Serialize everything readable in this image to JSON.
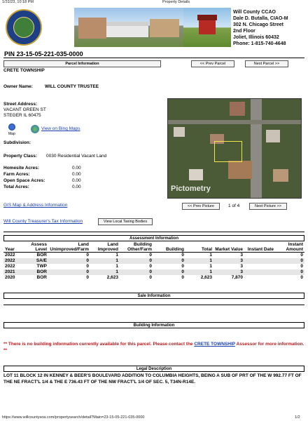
{
  "browser": {
    "print_date": "1/31/23, 10:18 PM",
    "print_title": "Property Details",
    "footer_url": "https://www.willcountysoa.com/propertysearch/detail?Main=23-15-05-221-035-0000",
    "footer_page": "1/2"
  },
  "office": {
    "name": "Will County CCAO",
    "officer": "Dale D. Butalla, CIAO-M",
    "street": "302 N. Chicago Street",
    "floor": "2nd Floor",
    "city": "Joliet, Illinois 60432",
    "phone": "Phone:   1-815-740-4648"
  },
  "pin": "PIN  23-15-05-221-035-0000",
  "parcel": {
    "header": "Parcel Information",
    "prev_label": "<<   Prev Parcel",
    "next_label": "Next Parcel   >>",
    "township": "CRETE TOWNSHIP",
    "owner_label": "Owner Name:",
    "owner_value": "WILL COUNTY TRUSTEE",
    "street_label": "Street Address:",
    "street_line1": "VACANT GREEN ST",
    "street_line2": "STEGER IL 60475",
    "map_label": "Map",
    "bing_link": "View on Bing Maps",
    "subdivision_label": "Subdivision:",
    "class_label": "Property Class:",
    "class_value": "0030 Residential Vacant Land",
    "homesite_label": "Homesite Acres:",
    "homesite_value": "0.00",
    "farm_label": "Farm Acres:",
    "farm_value": "0.00",
    "openspace_label": "Open Space Acres:",
    "openspace_value": "0.00",
    "total_label": "Total Acres:",
    "total_value": "0.00",
    "gis_link": "GIS Map & Address Information",
    "tax_link": "Will County Treasurer's Tax Information",
    "taxing_bodies_btn": "View Local Taxing Bodies"
  },
  "picture": {
    "watermark": "Pictometry",
    "prev_label": "<<   Prev Picture",
    "next_label": "Next Picture   >>",
    "counter": "1 of 4"
  },
  "assessment": {
    "header": "Assessment Information",
    "columns": [
      "Year",
      "Assess Level",
      "Land Unimproved/Farm",
      "Land Improved",
      "Building Other/Farm",
      "Building",
      "Total",
      "Market Value",
      "Instant Date",
      "Instant Amount"
    ],
    "rows": [
      [
        "2022",
        "BOR",
        "0",
        "1",
        "0",
        "0",
        "1",
        "3",
        "",
        "0"
      ],
      [
        "2022",
        "SA/E",
        "0",
        "1",
        "0",
        "0",
        "1",
        "3",
        "",
        "0"
      ],
      [
        "2022",
        "TWP",
        "0",
        "1",
        "0",
        "0",
        "1",
        "3",
        "",
        "0"
      ],
      [
        "2021",
        "BOR",
        "0",
        "1",
        "0",
        "0",
        "1",
        "3",
        "",
        "0"
      ],
      [
        "2020",
        "BOR",
        "0",
        "2,623",
        "0",
        "0",
        "2,623",
        "7,870",
        "",
        "0"
      ]
    ]
  },
  "sale": {
    "header": "Sale Information"
  },
  "building": {
    "header": "Building Information",
    "notice_prefix": "** There is no building information currently available for this parcel. Please contact the ",
    "notice_link": "CRETE TOWNSHIP",
    "notice_suffix": " Assessor for more information. **"
  },
  "legal": {
    "header": "Legal Description",
    "text": "LOT 11 BLOCK 12 IN KENNEY & BEER'S BOULEVARD ADDITION TO COLUMBIA HEIGHTS, BEING A SUB OF PRT OF THE W 992.77 FT OF THE NE FRACT'L 1/4 & THE E 736.43 FT OF THE NW FRACT'L 1/4 OF SEC. 5, T34N-R14E."
  }
}
